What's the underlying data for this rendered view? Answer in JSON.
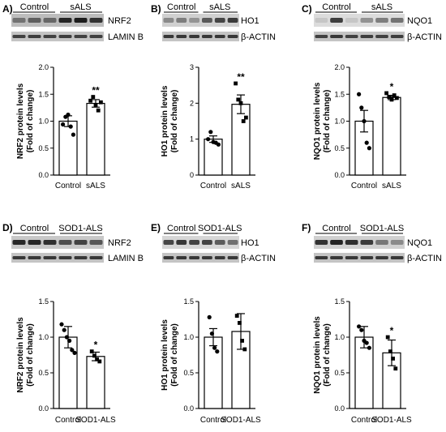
{
  "panels": [
    {
      "letter": "A)",
      "groups": [
        "Control",
        "sALS"
      ],
      "protein": "NRF2",
      "loading": "LAMIN B",
      "gray": "#0a0a0a",
      "bg": "#bdbdbd",
      "ctl": [
        0.42,
        0.52,
        0.48
      ],
      "exp": [
        0.85,
        0.9,
        0.78
      ],
      "load": [
        0.7,
        0.72,
        0.7,
        0.72,
        0.7,
        0.71
      ]
    },
    {
      "letter": "B)",
      "groups": [
        "Control",
        "sALS"
      ],
      "protein": "HO1",
      "loading": "β-ACTIN",
      "gray": "#0a0a0a",
      "bg": "#d0d0d0",
      "ctl": [
        0.35,
        0.42,
        0.3
      ],
      "exp": [
        0.6,
        0.7,
        0.75
      ],
      "load": [
        0.75,
        0.75,
        0.75,
        0.75,
        0.75,
        0.75
      ]
    },
    {
      "letter": "C)",
      "groups": [
        "Control",
        "sALS"
      ],
      "protein": "NQO1",
      "loading": "β-ACTIN",
      "gray": "#0a0a0a",
      "bg": "#dcdcdc",
      "ctl": [
        0.1,
        0.75,
        0.1
      ],
      "exp": [
        0.35,
        0.45,
        0.5
      ],
      "load": [
        0.7,
        0.75,
        0.7,
        0.72,
        0.7,
        0.72
      ]
    },
    {
      "letter": "D)",
      "groups": [
        "Control",
        "SOD1-ALS"
      ],
      "protein": "NRF2",
      "loading": "LAMIN B",
      "gray": "#0a0a0a",
      "bg": "#c8c8c8",
      "ctl": [
        0.85,
        0.85,
        0.8
      ],
      "exp": [
        0.65,
        0.7,
        0.6
      ],
      "load": [
        0.75,
        0.75,
        0.75,
        0.75,
        0.75,
        0.75
      ]
    },
    {
      "letter": "E)",
      "groups": [
        "Control",
        "SOD1-ALS"
      ],
      "protein": "HO1",
      "loading": "β-ACTIN",
      "gray": "#0a0a0a",
      "bg": "#d6d6d6",
      "ctl": [
        0.7,
        0.78,
        0.72
      ],
      "exp": [
        0.72,
        0.6,
        0.5
      ],
      "load": [
        0.75,
        0.75,
        0.75,
        0.75,
        0.75,
        0.75
      ]
    },
    {
      "letter": "F)",
      "groups": [
        "Control",
        "SOD1-ALS"
      ],
      "protein": "NQO1",
      "loading": "β-ACTIN",
      "gray": "#0a0a0a",
      "bg": "#d0d0d0",
      "ctl": [
        0.8,
        0.88,
        0.82
      ],
      "exp": [
        0.75,
        0.45,
        0.35
      ],
      "load": [
        0.75,
        0.75,
        0.75,
        0.75,
        0.75,
        0.75
      ]
    }
  ],
  "chart_data": [
    {
      "type": "bar",
      "ylabel": "NRF2 protein levels (Fold of change)",
      "categories": [
        "Control",
        "sALS"
      ],
      "ylim": [
        0,
        2.0
      ],
      "yticks": [
        "0.0",
        "0.5",
        "1.0",
        "1.5",
        "2.0"
      ],
      "yticks_v": [
        0,
        0.5,
        1.0,
        1.5,
        2.0
      ],
      "values": [
        1.0,
        1.33
      ],
      "errors": [
        0.1,
        0.07
      ],
      "points": [
        [
          0.94,
          1.08,
          1.12,
          0.9,
          0.75
        ],
        [
          1.38,
          1.45,
          1.3,
          1.2,
          1.35
        ]
      ],
      "significance": [
        "",
        "**"
      ]
    },
    {
      "type": "bar",
      "ylabel": "HO1 protein levels (Fold of change)",
      "categories": [
        "Control",
        "sALS"
      ],
      "ylim": [
        0,
        3
      ],
      "yticks": [
        "0",
        "1",
        "2",
        "3"
      ],
      "yticks_v": [
        0,
        1,
        2,
        3
      ],
      "values": [
        1.0,
        1.97
      ],
      "errors": [
        0.09,
        0.26
      ],
      "points": [
        [
          1.0,
          1.2,
          0.92,
          0.9,
          0.85
        ],
        [
          2.55,
          2.1,
          2.0,
          1.5,
          1.6
        ]
      ],
      "significance": [
        "",
        "**"
      ]
    },
    {
      "type": "bar",
      "ylabel": "NQO1 protein levels (Fold of change)",
      "categories": [
        "Control",
        "sALS"
      ],
      "ylim": [
        0,
        2.0
      ],
      "yticks": [
        "0.0",
        "0.5",
        "1.0",
        "1.5",
        "2.0"
      ],
      "yticks_v": [
        0,
        0.5,
        1.0,
        1.5,
        2.0
      ],
      "values": [
        1.0,
        1.44
      ],
      "errors": [
        0.2,
        0.04
      ],
      "points": [
        [
          1.5,
          1.25,
          1.0,
          0.6,
          0.5
        ],
        [
          1.52,
          1.45,
          1.4,
          1.48,
          1.43
        ]
      ],
      "significance": [
        "",
        "*"
      ]
    },
    {
      "type": "bar",
      "ylabel": "NRF2 protein levels (Fold of change)",
      "categories": [
        "Control",
        "SOD1-ALS"
      ],
      "ylim": [
        0,
        1.5
      ],
      "yticks": [
        "0.0",
        "0.5",
        "1.0",
        "1.5"
      ],
      "yticks_v": [
        0,
        0.5,
        1.0,
        1.5
      ],
      "values": [
        1.0,
        0.73
      ],
      "errors": [
        0.15,
        0.06
      ],
      "points": [
        [
          1.18,
          1.1,
          1.0,
          0.95,
          0.82,
          0.78
        ],
        [
          0.8,
          0.74,
          0.69,
          0.66
        ]
      ],
      "significance": [
        "",
        "*"
      ]
    },
    {
      "type": "bar",
      "ylabel": "HO1 protein levels (Fold of change)",
      "categories": [
        "Control",
        "SOD1-ALS"
      ],
      "ylim": [
        0,
        1.5
      ],
      "yticks": [
        "0.0",
        "0.5",
        "1.0",
        "1.5"
      ],
      "yticks_v": [
        0,
        0.5,
        1.0,
        1.5
      ],
      "values": [
        1.0,
        1.08
      ],
      "errors": [
        0.12,
        0.25
      ],
      "points": [
        [
          1.28,
          1.05,
          0.85,
          0.8
        ],
        [
          1.3,
          1.2,
          0.95,
          0.83
        ]
      ],
      "significance": [
        "",
        ""
      ]
    },
    {
      "type": "bar",
      "ylabel": "NQO1 protein levels (Fold of change)",
      "categories": [
        "Control",
        "SOD1-ALS"
      ],
      "ylim": [
        0,
        1.5
      ],
      "yticks": [
        "0.0",
        "0.5",
        "1.0",
        "1.5"
      ],
      "yticks_v": [
        0,
        0.5,
        1.0,
        1.5
      ],
      "values": [
        1.0,
        0.78
      ],
      "errors": [
        0.15,
        0.18
      ],
      "points": [
        [
          1.15,
          1.1,
          0.95,
          0.92,
          0.85
        ],
        [
          1.0,
          0.8,
          0.7,
          0.56
        ]
      ],
      "significance": [
        "",
        "*"
      ]
    }
  ]
}
